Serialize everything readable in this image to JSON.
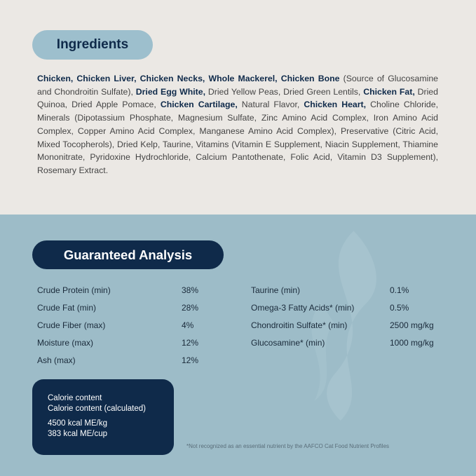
{
  "ingredients": {
    "title": "Ingredients",
    "segments": [
      {
        "text": "Chicken, Chicken Liver, Chicken Necks, Whole Mackerel, Chicken Bone",
        "bold": true
      },
      {
        "text": " (Source of Glucosamine and Chondroitin Sulfate), ",
        "bold": false
      },
      {
        "text": "Dried Egg White,",
        "bold": true
      },
      {
        "text": " Dried Yellow Peas, Dried Green Lentils, ",
        "bold": false
      },
      {
        "text": "Chicken Fat,",
        "bold": true
      },
      {
        "text": " Dried Quinoa, Dried Apple Pomace, ",
        "bold": false
      },
      {
        "text": "Chicken Cartilage,",
        "bold": true
      },
      {
        "text": " Natural Flavor, ",
        "bold": false
      },
      {
        "text": "Chicken Heart,",
        "bold": true
      },
      {
        "text": " Choline Chloride, Minerals (Dipotassium Phosphate, Magnesium Sulfate, Zinc Amino Acid Complex, Iron Amino Acid Complex, Copper Amino Acid Complex, Manganese Amino Acid Complex), Preservative (Citric Acid, Mixed Tocopherols), Dried Kelp, Taurine, Vitamins (Vitamin E Supplement, Niacin Supplement, Thiamine Mononitrate, Pyridoxine Hydrochloride, Calcium Pantothenate, Folic Acid, Vitamin D3 Supplement), Rosemary Extract.",
        "bold": false
      }
    ]
  },
  "analysis": {
    "title": "Guaranteed Analysis",
    "left": [
      {
        "label": "Crude Protein (min)",
        "value": "38%"
      },
      {
        "label": "Crude Fat (min)",
        "value": "28%"
      },
      {
        "label": "Crude Fiber (max)",
        "value": "4%"
      },
      {
        "label": "Moisture (max)",
        "value": "12%"
      },
      {
        "label": "Ash (max)",
        "value": "12%"
      }
    ],
    "right": [
      {
        "label": "Taurine (min)",
        "value": "0.1%"
      },
      {
        "label": "Omega-3 Fatty Acids* (min)",
        "value": "0.5%"
      },
      {
        "label": "Chondroitin Sulfate* (min)",
        "value": "2500 mg/kg"
      },
      {
        "label": "Glucosamine* (min)",
        "value": "1000 mg/kg"
      }
    ]
  },
  "calorie": {
    "line1": "Calorie content",
    "line2": "Calorie content (calculated)",
    "line3": "4500 kcal ME/kg",
    "line4": "383 kcal ME/cup"
  },
  "footnote": "*Not recognized as an essential nutrient by the AAFCO Cat Food Nutrient Profiles",
  "colors": {
    "navy": "#0f2a4a",
    "light_blue": "#9dbcc8",
    "cream": "#ebe8e4"
  }
}
